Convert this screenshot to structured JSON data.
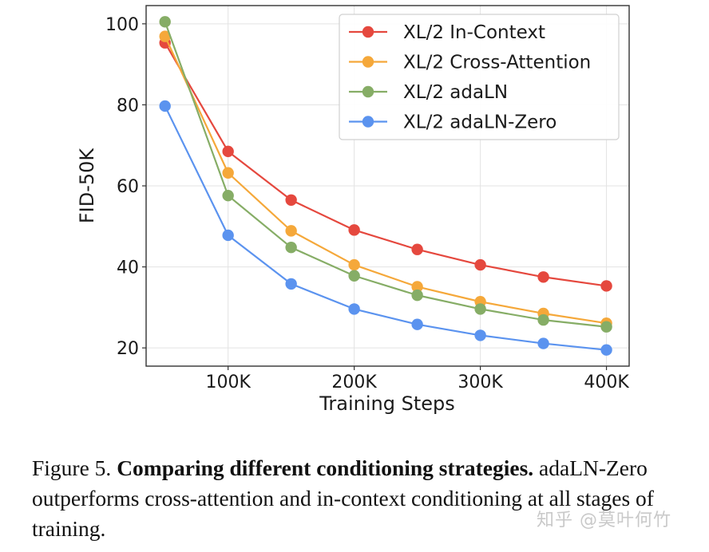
{
  "chart_data": {
    "type": "line",
    "title": "",
    "xlabel": "Training Steps",
    "ylabel": "FID-50K",
    "x": [
      50000,
      100000,
      150000,
      200000,
      250000,
      300000,
      350000,
      400000
    ],
    "xlim": [
      35000,
      418000
    ],
    "ylim": [
      15.5,
      104.5
    ],
    "x_ticks": [
      100000,
      200000,
      300000,
      400000
    ],
    "x_tick_labels": [
      "100K",
      "200K",
      "300K",
      "400K"
    ],
    "y_ticks": [
      20,
      40,
      60,
      80,
      100
    ],
    "y_tick_labels": [
      "20",
      "40",
      "60",
      "80",
      "100"
    ],
    "grid": true,
    "legend_position": "top-right",
    "series": [
      {
        "name": "XL/2 In-Context",
        "color": "#e5483e",
        "values": [
          95.3,
          68.5,
          56.5,
          49.1,
          44.3,
          40.5,
          37.5,
          35.3
        ]
      },
      {
        "name": "XL/2 Cross-Attention",
        "color": "#f5a83a",
        "values": [
          96.9,
          63.2,
          48.9,
          40.5,
          35.1,
          31.4,
          28.5,
          26.1
        ]
      },
      {
        "name": "XL/2 adaLN",
        "color": "#86ad66",
        "values": [
          100.5,
          57.6,
          44.8,
          37.8,
          33.0,
          29.6,
          26.9,
          25.2
        ]
      },
      {
        "name": "XL/2 adaLN-Zero",
        "color": "#5b93ef",
        "values": [
          79.7,
          47.8,
          35.8,
          29.6,
          25.8,
          23.1,
          21.1,
          19.5
        ]
      }
    ]
  },
  "caption": {
    "label": "Figure 5.",
    "bold": "Comparing different conditioning strategies.",
    "text": "adaLN-Zero outperforms cross-attention and in-context conditioning at all stages of training."
  },
  "watermark": "知乎 @莫叶何竹"
}
